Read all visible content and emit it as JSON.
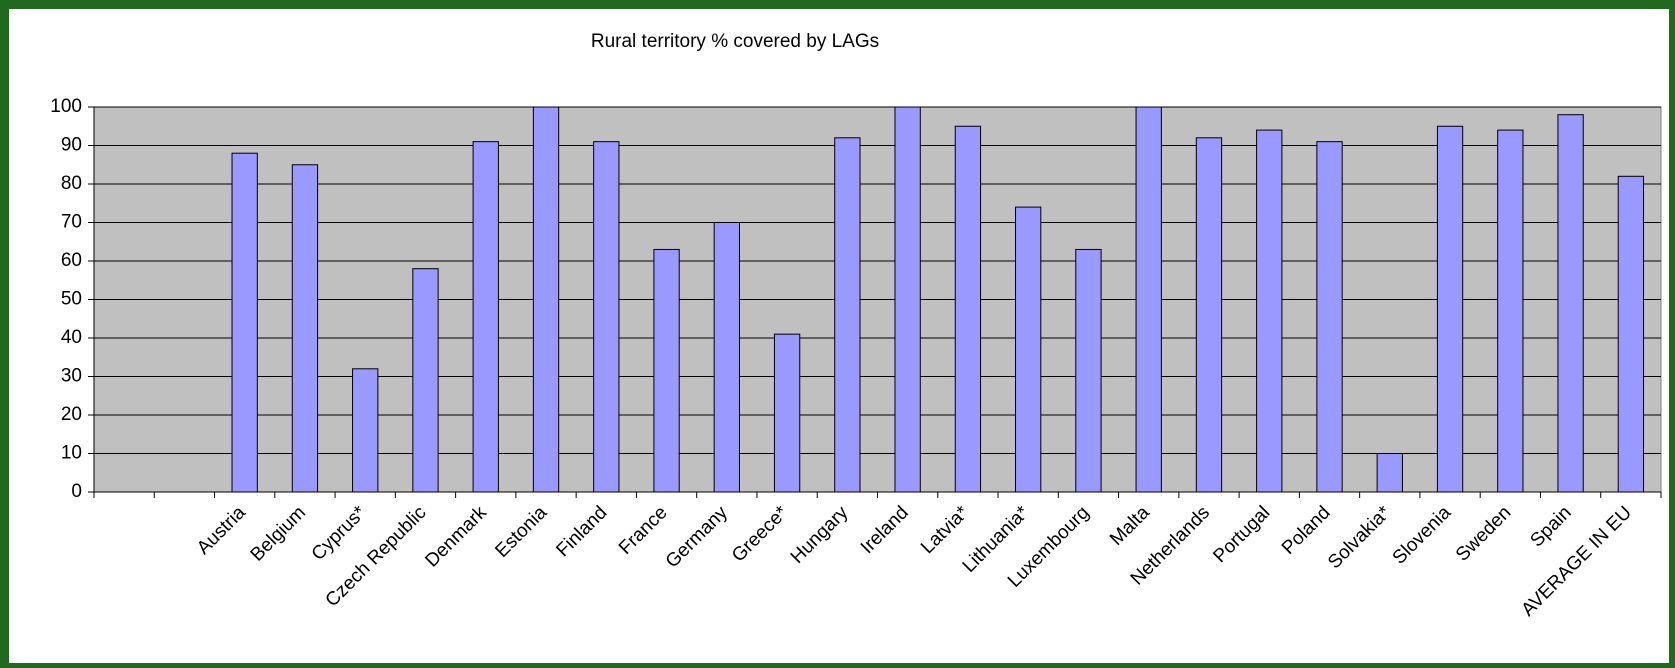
{
  "chart_data": {
    "type": "bar",
    "title": "Rural territory % covered by LAGs",
    "categories": [
      null,
      null,
      "Austria",
      "Belgium",
      "Cyprus*",
      "Czech Republic",
      "Denmark",
      "Estonia",
      "Finland",
      "France",
      "Germany",
      "Greece*",
      "Hungary",
      "Ireland",
      "Latvia*",
      "Lithuania*",
      "Luxembourg",
      "Malta",
      "Netherlands",
      "Portugal",
      "Poland",
      "Solvakia*",
      "Slovenia",
      "Sweden",
      "Spain",
      "AVERAGE IN EU"
    ],
    "values": [
      null,
      null,
      88,
      85,
      32,
      58,
      91,
      100,
      91,
      63,
      70,
      41,
      92,
      100,
      95,
      74,
      63,
      100,
      92,
      94,
      91,
      10,
      95,
      94,
      98,
      82
    ],
    "color": "#9999ff",
    "ylim": [
      0,
      100
    ],
    "yticks": [
      0,
      10,
      20,
      30,
      40,
      50,
      60,
      70,
      80,
      90,
      100
    ],
    "grid": true
  }
}
